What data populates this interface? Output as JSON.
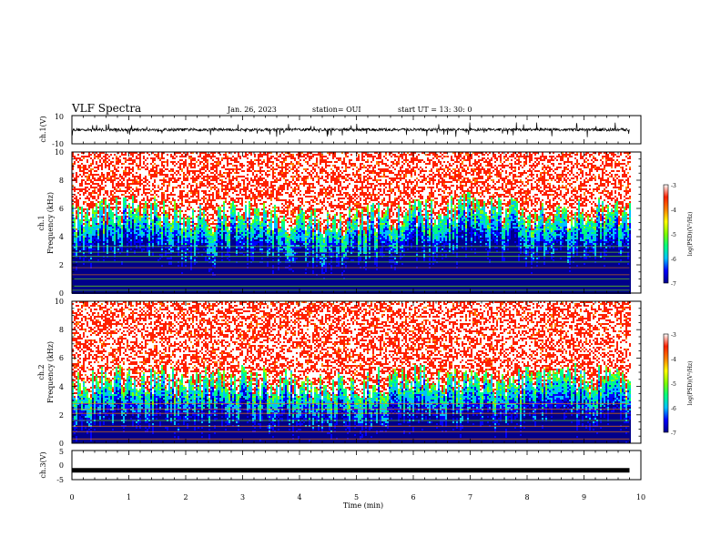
{
  "header": {
    "title": "VLF Spectra",
    "date": "Jan. 26, 2023",
    "station": "station= OUI",
    "start": "start  UT  =   13: 30: 0"
  },
  "chart_data": [
    {
      "type": "line",
      "name": "ch1-waveform",
      "ylabel": "ch.1(V)",
      "ylim": [
        -10,
        10
      ],
      "y_ticks": [
        "10",
        "-10"
      ],
      "x_range": [
        0,
        10
      ],
      "x_extent": 9.8,
      "baseline": 0,
      "noise_amplitude": 2,
      "spike_amplitude": 5
    },
    {
      "type": "heatmap",
      "name": "ch1-spectrogram",
      "ylabel": "ch.1",
      "ylabel2": "Frequency (kHz)",
      "ylim": [
        0,
        10
      ],
      "y_ticks": [
        0,
        2,
        4,
        6,
        8,
        10
      ],
      "x_range": [
        0,
        10
      ],
      "x_extent": 9.8,
      "colorbar": {
        "label": "log(PSD)(V²/Hz)",
        "range": [
          -7,
          -3
        ],
        "ticks": [
          "-3",
          "-4",
          "-5",
          "-6",
          "-7"
        ]
      },
      "time_profile": [
        {
          "t": 0.0,
          "f": 4.2
        },
        {
          "t": 0.5,
          "f": 4.5
        },
        {
          "t": 1.0,
          "f": 4.8
        },
        {
          "t": 1.5,
          "f": 4.6
        },
        {
          "t": 2.0,
          "f": 4.4
        },
        {
          "t": 2.5,
          "f": 4.2
        },
        {
          "t": 3.0,
          "f": 4.5
        },
        {
          "t": 3.5,
          "f": 4.1
        },
        {
          "t": 4.0,
          "f": 4.0
        },
        {
          "t": 4.5,
          "f": 3.8
        },
        {
          "t": 5.0,
          "f": 4.0
        },
        {
          "t": 5.5,
          "f": 4.3
        },
        {
          "t": 6.0,
          "f": 4.5
        },
        {
          "t": 6.5,
          "f": 4.8
        },
        {
          "t": 7.0,
          "f": 5.0
        },
        {
          "t": 7.5,
          "f": 4.6
        },
        {
          "t": 8.0,
          "f": 4.4
        },
        {
          "t": 8.5,
          "f": 4.2
        },
        {
          "t": 9.0,
          "f": 4.6
        },
        {
          "t": 9.5,
          "f": 4.5
        },
        {
          "t": 9.8,
          "f": 4.4
        }
      ],
      "lines_khz": [
        0.2,
        0.5,
        1.0,
        1.3,
        1.8,
        2.2,
        2.6,
        2.9,
        3.3
      ]
    },
    {
      "type": "heatmap",
      "name": "ch2-spectrogram",
      "ylabel": "ch.2",
      "ylabel2": "Frequency (kHz)",
      "ylim": [
        0,
        10
      ],
      "y_ticks": [
        0,
        2,
        4,
        6,
        8,
        10
      ],
      "x_range": [
        0,
        10
      ],
      "x_extent": 9.8,
      "colorbar": {
        "label": "log(PSD)(V²/Hz)",
        "range": [
          -7,
          -3
        ],
        "ticks": [
          "-3",
          "-4",
          "-5",
          "-6",
          "-7"
        ]
      },
      "time_profile": [
        {
          "t": 0.0,
          "f": 3.0
        },
        {
          "t": 0.5,
          "f": 3.2
        },
        {
          "t": 1.0,
          "f": 3.5
        },
        {
          "t": 1.5,
          "f": 3.3
        },
        {
          "t": 2.0,
          "f": 3.0
        },
        {
          "t": 2.5,
          "f": 3.2
        },
        {
          "t": 3.0,
          "f": 3.4
        },
        {
          "t": 3.5,
          "f": 3.1
        },
        {
          "t": 4.0,
          "f": 3.0
        },
        {
          "t": 4.5,
          "f": 2.9
        },
        {
          "t": 5.0,
          "f": 3.0
        },
        {
          "t": 5.5,
          "f": 3.2
        },
        {
          "t": 6.0,
          "f": 3.4
        },
        {
          "t": 6.5,
          "f": 3.3
        },
        {
          "t": 7.0,
          "f": 3.2
        },
        {
          "t": 7.5,
          "f": 3.0
        },
        {
          "t": 8.0,
          "f": 3.3
        },
        {
          "t": 8.5,
          "f": 3.6
        },
        {
          "t": 9.0,
          "f": 3.4
        },
        {
          "t": 9.5,
          "f": 3.2
        },
        {
          "t": 9.8,
          "f": 3.1
        }
      ],
      "lines_khz": [
        0.3,
        0.8,
        1.2,
        1.6,
        2.1,
        2.4,
        2.8
      ]
    },
    {
      "type": "line",
      "name": "ch3-waveform",
      "ylabel": "ch.3(V)",
      "ylim": [
        -5,
        5
      ],
      "y_ticks": [
        "5",
        "0",
        "-5"
      ],
      "x_range": [
        0,
        10
      ],
      "x_extent": 9.8,
      "baseline": -1.8
    }
  ],
  "x_axis": {
    "label": "Time  (min)",
    "ticks": [
      "0",
      "1",
      "2",
      "3",
      "4",
      "5",
      "6",
      "7",
      "8",
      "9",
      "10"
    ]
  },
  "colors": {
    "colormap": [
      "#00008b",
      "#0000ff",
      "#00bfff",
      "#00ff80",
      "#80ff00",
      "#ffff00",
      "#ff8000",
      "#ff2000",
      "#ffffff"
    ]
  }
}
